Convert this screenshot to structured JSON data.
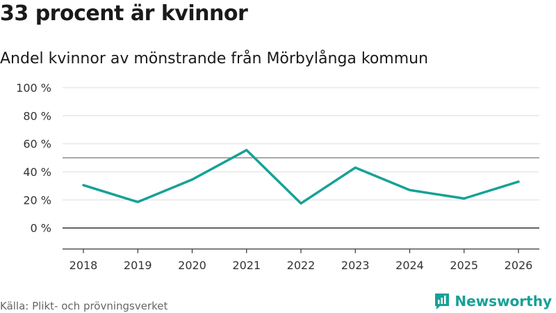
{
  "header": {
    "title": "33 procent är kvinnor",
    "subtitle": "Andel kvinnor av mönstrande från Mörbylånga kommun"
  },
  "footer": {
    "source": "Källa: Plikt- och prövningsverket",
    "brand": "Newsworthy"
  },
  "colors": {
    "line": "#17a197",
    "grid": "#dddddd",
    "zero_line": "#333333",
    "reference_line": "#777777",
    "axis": "#333333"
  },
  "chart_data": {
    "type": "line",
    "title": "33 procent är kvinnor",
    "subtitle": "Andel kvinnor av mönstrande från Mörbylånga kommun",
    "xlabel": "",
    "ylabel": "",
    "categories": [
      "2018",
      "2019",
      "2020",
      "2021",
      "2022",
      "2023",
      "2024",
      "2025",
      "2026"
    ],
    "series": [
      {
        "name": "Andel kvinnor",
        "values": [
          30.5,
          18.5,
          34.5,
          55.5,
          17.5,
          43,
          27,
          21,
          33
        ]
      }
    ],
    "ylim": [
      -15,
      100
    ],
    "yticks": [
      0,
      20,
      40,
      60,
      80,
      100
    ],
    "ytick_labels": [
      "0 %",
      "20 %",
      "40 %",
      "60 %",
      "80 %",
      "100 %"
    ],
    "reference_line": 50,
    "grid": true,
    "legend": "none"
  }
}
